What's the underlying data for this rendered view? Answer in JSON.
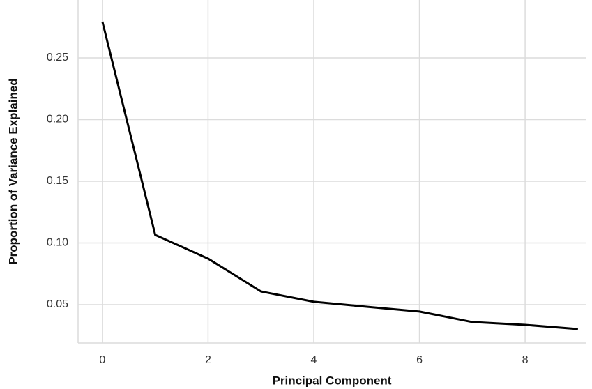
{
  "chart_data": {
    "type": "line",
    "x_label": "Principal Component",
    "y_label": "Proportion of Variance Explained",
    "x": [
      0,
      1,
      2,
      3,
      4,
      5,
      6,
      7,
      8,
      9
    ],
    "series": [
      {
        "color": "#000000",
        "values": [
          0.2794,
          0.1065,
          0.0873,
          0.0607,
          0.0523,
          0.0483,
          0.0444,
          0.0359,
          0.0336,
          0.0302
        ]
      }
    ],
    "xlim": [
      -0.46,
      9.16
    ],
    "ylim": [
      0.0189,
      0.2969
    ],
    "xticks": [
      0,
      2,
      4,
      6,
      8
    ],
    "yticks": [
      0.05,
      {
        "value": 0.1,
        "label": "0.10"
      },
      0.15,
      {
        "value": 0.2,
        "label": "0.20"
      },
      0.25
    ],
    "grid": true
  }
}
